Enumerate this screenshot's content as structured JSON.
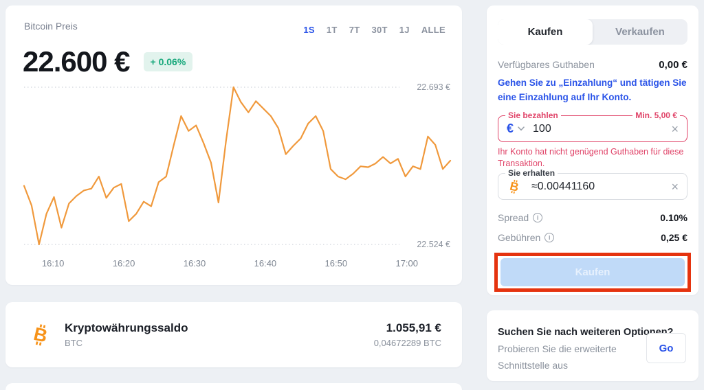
{
  "chart_card": {
    "title": "Bitcoin Preis",
    "price": "22.600 €",
    "change_badge": "+ 0.06%",
    "range_tabs": [
      "1S",
      "1T",
      "7T",
      "30T",
      "1J",
      "ALLE"
    ],
    "active_tab": "1S"
  },
  "chart_data": {
    "type": "line",
    "title": "Bitcoin Preis (1S)",
    "unit": "EUR",
    "line_color": "#f0993c",
    "y_max": 22693,
    "y_min": 22524,
    "y_max_label": "22.693 €",
    "y_min_label": "22.524 €",
    "x_ticks": [
      "16:10",
      "16:20",
      "16:30",
      "16:40",
      "16:50",
      "17:00"
    ],
    "grid": "dotted horizontal at min/max only",
    "values": [
      22587,
      22566,
      22524,
      22557,
      22575,
      22542,
      22568,
      22576,
      22582,
      22584,
      22597,
      22574,
      22585,
      22589,
      22549,
      22557,
      22570,
      22565,
      22591,
      22597,
      22630,
      22662,
      22646,
      22652,
      22633,
      22612,
      22569,
      22635,
      22693,
      22677,
      22666,
      22678,
      22670,
      22662,
      22649,
      22621,
      22630,
      22638,
      22654,
      22662,
      22646,
      22605,
      22597,
      22594,
      22600,
      22608,
      22607,
      22611,
      22618,
      22611,
      22616,
      22597,
      22608,
      22605,
      22640,
      22631,
      22605,
      22614
    ]
  },
  "balance_card": {
    "title": "Kryptowährungssaldo",
    "asset": "BTC",
    "fiat_value": "1.055,91 €",
    "crypto_value": "0,04672289 BTC"
  },
  "trade_card": {
    "tabs": {
      "buy": "Kaufen",
      "sell": "Verkaufen"
    },
    "available_label": "Verfügbares Guthaben",
    "available_value": "0,00 €",
    "deposit_hint": "Gehen Sie zu „Einzahlung“ und tätigen Sie eine Einzahlung auf Ihr Konto.",
    "pay_field": {
      "label": "Sie bezahlen",
      "min_label": "Min. 5,00 €",
      "currency_symbol": "€",
      "value": "100"
    },
    "error_message": "Ihr Konto hat nicht genügend Guthaben für diese Transaktion.",
    "receive_field": {
      "label": "Sie erhalten",
      "value": "≈0.00441160"
    },
    "spread_label": "Spread",
    "spread_value": "0.10%",
    "fees_label": "Gebühren",
    "fees_value": "0,25 €",
    "buy_button": "Kaufen"
  },
  "options_card": {
    "title": "Suchen Sie nach weiteren Optionen?",
    "subtitle": "Probieren Sie die erweiterte Schnittstelle aus",
    "go_button": "Go"
  },
  "colors": {
    "background": "#edf0f4",
    "accent_blue": "#2a53e8",
    "positive_teal": "#17a87b",
    "badge_bg": "#e2f3ed",
    "chart_orange": "#f0993c",
    "bitcoin_orange": "#f7931a",
    "error_pink_red": "#e04368",
    "annotation_red": "#e5330f",
    "disabled_button_bg": "#c0daf8"
  }
}
